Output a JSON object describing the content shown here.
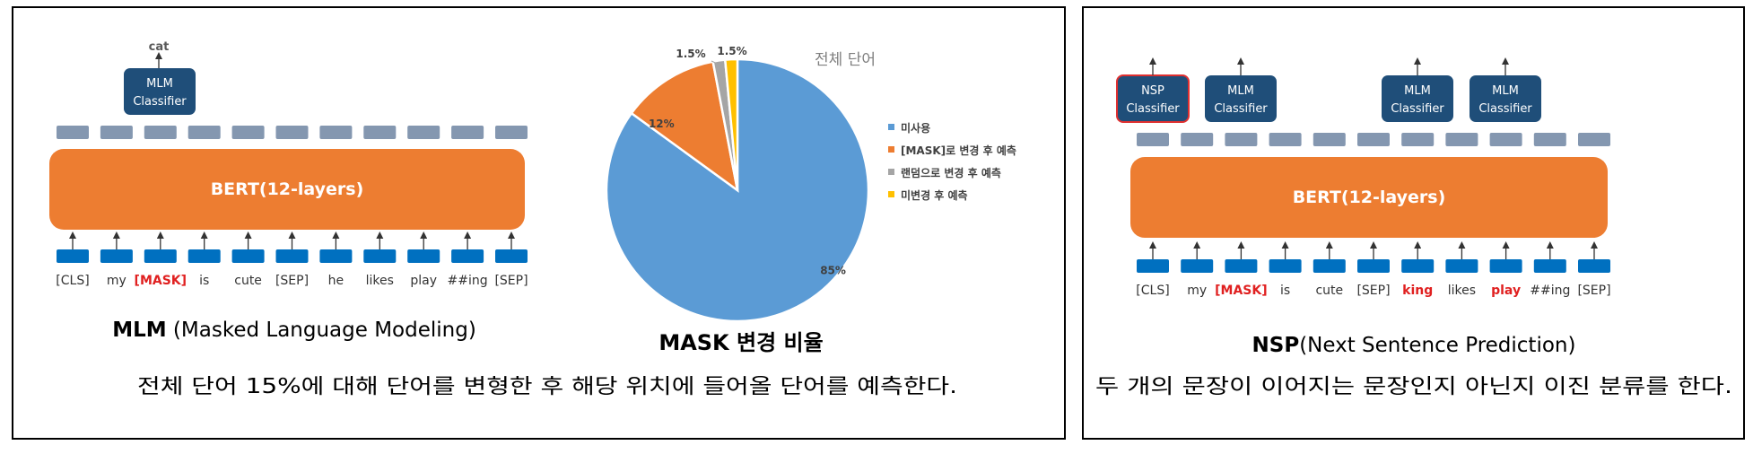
{
  "colors": {
    "bert_orange": "#ED7D31",
    "token_blue": "#0070C0",
    "classifier_navy": "#1F4E79",
    "output_gray": "#8497B0",
    "mask_red": "#E02020",
    "nsp_border": "#E03030",
    "pie_blue": "#5B9BD5",
    "pie_orange": "#ED7D31",
    "pie_gray": "#A5A5A5",
    "pie_yellow": "#FFC000"
  },
  "mlm": {
    "output_word": "cat",
    "classifier_label": [
      "MLM",
      "Classifier"
    ],
    "bert_label": "BERT(12-layers)",
    "tokens": [
      "[CLS]",
      "my",
      "[MASK]",
      "is",
      "cute",
      "[SEP]",
      "he",
      "likes",
      "play",
      "##ing",
      "[SEP]"
    ],
    "highlight_tokens": [
      2
    ],
    "title_bold": "MLM",
    "title_rest": " (Masked Language Modeling)",
    "description": "전체 단어 15%에 대해 단어를 변형한 후 해당 위치에 들어올 단어를 예측한다."
  },
  "chart_data": {
    "type": "pie",
    "title": "MASK 변경 비율",
    "subtitle": "전체 단어",
    "series": [
      {
        "name": "미사용",
        "value": 85,
        "label": "85%"
      },
      {
        "name": "[MASK]로 변경 후 예측",
        "value": 12,
        "label": "12%"
      },
      {
        "name": "랜덤으로 변경 후 예측",
        "value": 1.5,
        "label": "1.5%"
      },
      {
        "name": "미변경 후 예측",
        "value": 1.5,
        "label": "1.5%"
      }
    ],
    "legend_position": "right"
  },
  "nsp": {
    "nsp_classifier_label": [
      "NSP",
      "Classifier"
    ],
    "mlm_classifier_label": [
      "MLM",
      "Classifier"
    ],
    "bert_label": "BERT(12-layers)",
    "tokens": [
      "[CLS]",
      "my",
      "[MASK]",
      "is",
      "cute",
      "[SEP]",
      "king",
      "likes",
      "play",
      "##ing",
      "[SEP]"
    ],
    "highlight_tokens": [
      2,
      6,
      8
    ],
    "title_bold": "NSP",
    "title_rest": "(Next Sentence Prediction)",
    "description": "두 개의 문장이 이어지는 문장인지 아닌지 이진 분류를 한다."
  }
}
